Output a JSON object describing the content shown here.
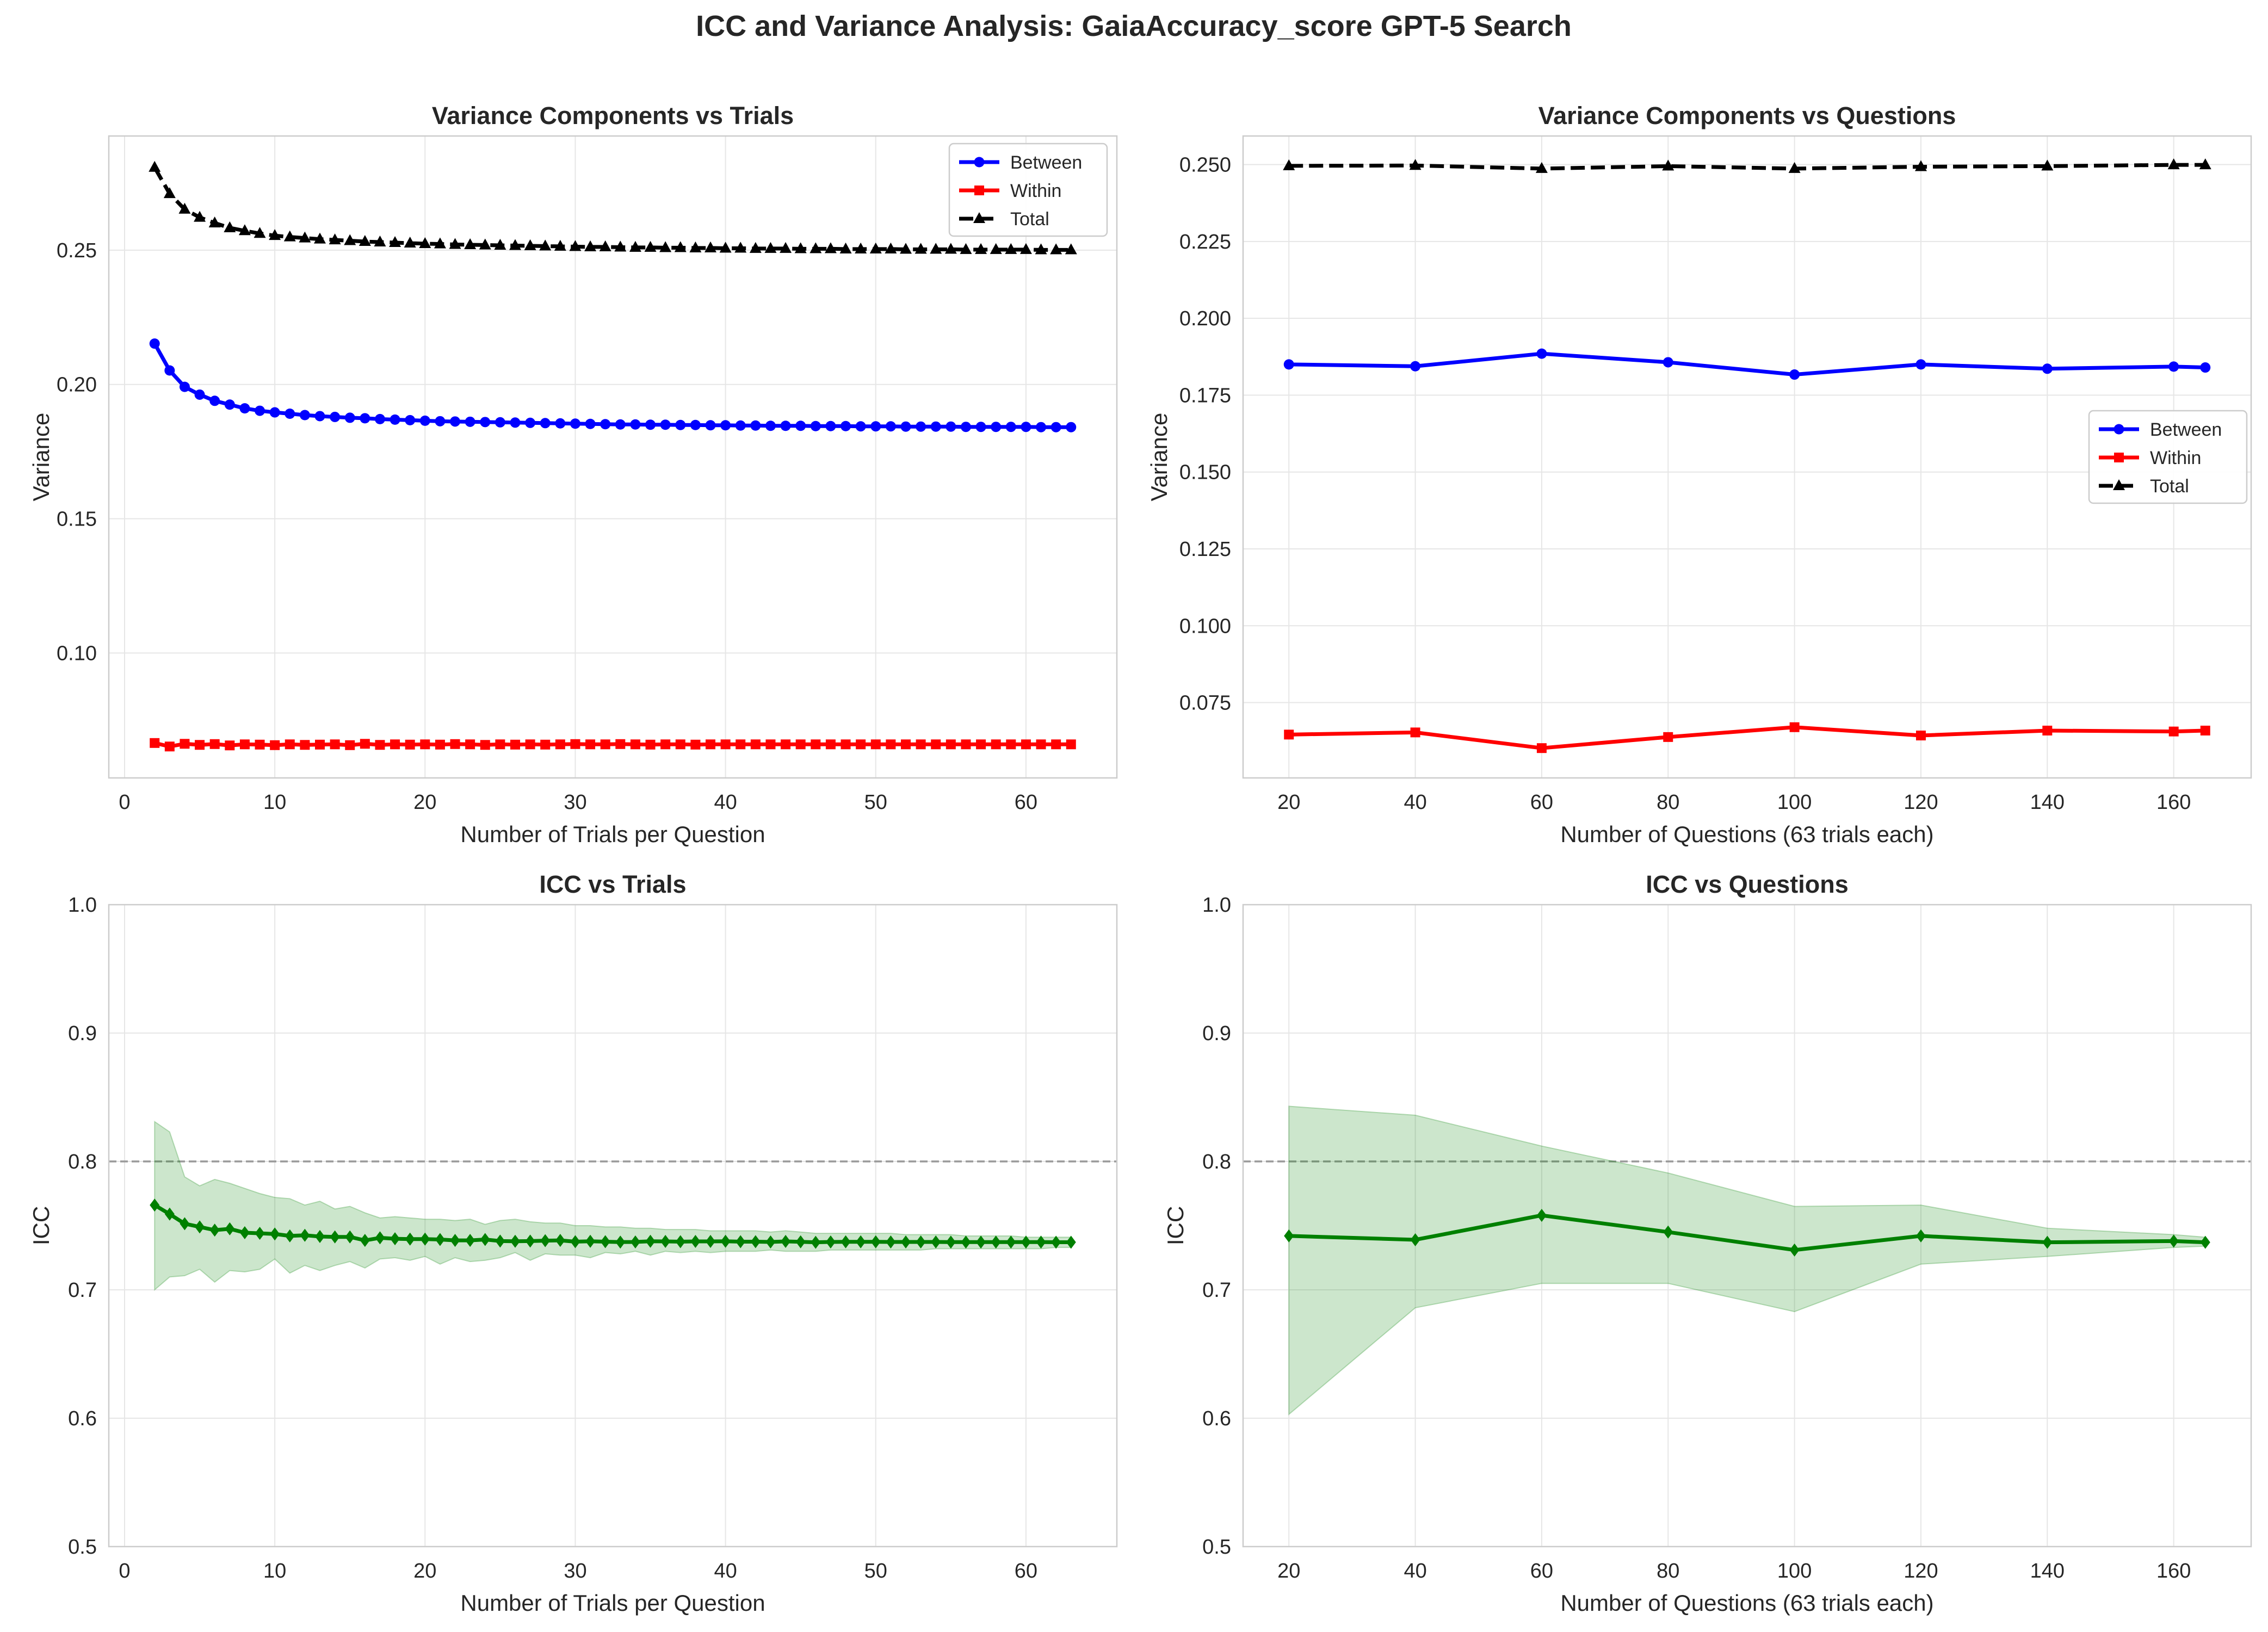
{
  "suptitle": "ICC and Variance Analysis: GaiaAccuracy_score GPT-5 Search",
  "colors": {
    "between": "#0000ff",
    "within": "#ff0000",
    "total": "#000000",
    "icc": "#008000",
    "ci_fill": "#008000",
    "reference_line": "#999999",
    "grid": "#e6e6e6",
    "spine": "#cccccc"
  },
  "chart_data": [
    {
      "id": "variance_vs_trials",
      "type": "line",
      "title": "Variance Components vs Trials",
      "xlabel": "Number of Trials per Question",
      "ylabel": "Variance",
      "xlim": [
        -1.05,
        66.05
      ],
      "ylim": [
        0.0535,
        0.2925
      ],
      "xticks": [
        0,
        10,
        20,
        30,
        40,
        50,
        60
      ],
      "yticks": [
        0.1,
        0.15,
        0.2,
        0.25
      ],
      "ytick_labels": [
        "0.10",
        "0.15",
        "0.20",
        "0.25"
      ],
      "legend": "top-right",
      "x": [
        2,
        3,
        4,
        5,
        6,
        7,
        8,
        9,
        10,
        11,
        12,
        13,
        14,
        15,
        16,
        17,
        18,
        19,
        20,
        21,
        22,
        23,
        24,
        25,
        26,
        27,
        28,
        29,
        30,
        31,
        32,
        33,
        34,
        35,
        36,
        37,
        38,
        39,
        40,
        41,
        42,
        43,
        44,
        45,
        46,
        47,
        48,
        49,
        50,
        51,
        52,
        53,
        54,
        55,
        56,
        57,
        58,
        59,
        60,
        61,
        62,
        63
      ],
      "series": [
        {
          "name": "Between",
          "key": "between",
          "marker": "circle",
          "dash": false,
          "values": [
            0.2152,
            0.2052,
            0.1991,
            0.1962,
            0.1939,
            0.1925,
            0.1911,
            0.1902,
            0.1896,
            0.1891,
            0.1886,
            0.1882,
            0.1879,
            0.1876,
            0.1874,
            0.1871,
            0.1869,
            0.1867,
            0.1865,
            0.1863,
            0.1862,
            0.1861,
            0.186,
            0.1859,
            0.1858,
            0.1857,
            0.1856,
            0.1855,
            0.1854,
            0.1853,
            0.1852,
            0.1851,
            0.1851,
            0.185,
            0.185,
            0.1849,
            0.1849,
            0.1848,
            0.1848,
            0.1847,
            0.1847,
            0.1846,
            0.1846,
            0.1846,
            0.1845,
            0.1845,
            0.1845,
            0.1844,
            0.1844,
            0.1844,
            0.1843,
            0.1843,
            0.1843,
            0.1843,
            0.1842,
            0.1842,
            0.1842,
            0.1842,
            0.1842,
            0.1841,
            0.1841,
            0.1841
          ]
        },
        {
          "name": "Within",
          "key": "within",
          "marker": "square",
          "dash": false,
          "values": [
            0.0665,
            0.0652,
            0.0662,
            0.0658,
            0.0661,
            0.0656,
            0.066,
            0.0659,
            0.0657,
            0.066,
            0.0658,
            0.0659,
            0.066,
            0.0657,
            0.0662,
            0.0658,
            0.066,
            0.0659,
            0.066,
            0.0659,
            0.0661,
            0.066,
            0.0658,
            0.066,
            0.0659,
            0.066,
            0.0659,
            0.066,
            0.0661,
            0.066,
            0.066,
            0.0661,
            0.066,
            0.0659,
            0.066,
            0.066,
            0.0659,
            0.066,
            0.066,
            0.066,
            0.066,
            0.066,
            0.066,
            0.066,
            0.066,
            0.066,
            0.066,
            0.066,
            0.066,
            0.066,
            0.066,
            0.066,
            0.066,
            0.066,
            0.066,
            0.066,
            0.066,
            0.066,
            0.066,
            0.066,
            0.066,
            0.066
          ]
        },
        {
          "name": "Total",
          "key": "total",
          "marker": "triangle",
          "dash": true,
          "values": [
            0.2808,
            0.271,
            0.2652,
            0.2622,
            0.2601,
            0.2583,
            0.2572,
            0.2562,
            0.2554,
            0.2549,
            0.2545,
            0.2541,
            0.2538,
            0.2535,
            0.2532,
            0.253,
            0.2528,
            0.2526,
            0.2524,
            0.2523,
            0.2521,
            0.252,
            0.2519,
            0.2518,
            0.2517,
            0.2516,
            0.2515,
            0.2514,
            0.2513,
            0.2512,
            0.2512,
            0.2511,
            0.251,
            0.251,
            0.2509,
            0.2509,
            0.2508,
            0.2508,
            0.2507,
            0.2507,
            0.2506,
            0.2506,
            0.2506,
            0.2505,
            0.2505,
            0.2505,
            0.2504,
            0.2504,
            0.2504,
            0.2504,
            0.2503,
            0.2503,
            0.2503,
            0.2503,
            0.2502,
            0.2502,
            0.2502,
            0.2502,
            0.2502,
            0.2501,
            0.2501,
            0.2501
          ]
        }
      ]
    },
    {
      "id": "variance_vs_questions",
      "type": "line",
      "title": "Variance Components vs Questions",
      "xlabel": "Number of Questions (63 trials each)",
      "ylabel": "Variance",
      "xlim": [
        12.75,
        172.25
      ],
      "ylim": [
        0.0505,
        0.2593
      ],
      "xticks": [
        20,
        40,
        60,
        80,
        100,
        120,
        140,
        160
      ],
      "yticks": [
        0.075,
        0.1,
        0.125,
        0.15,
        0.175,
        0.2,
        0.225,
        0.25
      ],
      "ytick_labels": [
        "0.075",
        "0.100",
        "0.125",
        "0.150",
        "0.175",
        "0.200",
        "0.225",
        "0.250"
      ],
      "legend": "center-right",
      "x": [
        20,
        40,
        60,
        80,
        100,
        120,
        140,
        160,
        165
      ],
      "series": [
        {
          "name": "Between",
          "key": "between",
          "marker": "circle",
          "dash": false,
          "values": [
            0.185,
            0.1844,
            0.1885,
            0.1857,
            0.1817,
            0.185,
            0.1836,
            0.1843,
            0.184
          ]
        },
        {
          "name": "Within",
          "key": "within",
          "marker": "square",
          "dash": false,
          "values": [
            0.0646,
            0.0653,
            0.0602,
            0.0638,
            0.067,
            0.0643,
            0.0659,
            0.0656,
            0.0659
          ]
        },
        {
          "name": "Total",
          "key": "total",
          "marker": "triangle",
          "dash": true,
          "values": [
            0.2496,
            0.2497,
            0.2487,
            0.2495,
            0.2487,
            0.2493,
            0.2495,
            0.2499,
            0.2499
          ]
        }
      ]
    },
    {
      "id": "icc_vs_trials",
      "type": "line",
      "title": "ICC vs Trials",
      "xlabel": "Number of Trials per Question",
      "ylabel": "ICC",
      "xlim": [
        -1.05,
        66.05
      ],
      "ylim": [
        0.5,
        1.0
      ],
      "xticks": [
        0,
        10,
        20,
        30,
        40,
        50,
        60
      ],
      "yticks": [
        0.5,
        0.6,
        0.7,
        0.8,
        0.9,
        1.0
      ],
      "ytick_labels": [
        "0.5",
        "0.6",
        "0.7",
        "0.8",
        "0.9",
        "1.0"
      ],
      "reference_line": 0.8,
      "x": [
        2,
        3,
        4,
        5,
        6,
        7,
        8,
        9,
        10,
        11,
        12,
        13,
        14,
        15,
        16,
        17,
        18,
        19,
        20,
        21,
        22,
        23,
        24,
        25,
        26,
        27,
        28,
        29,
        30,
        31,
        32,
        33,
        34,
        35,
        36,
        37,
        38,
        39,
        40,
        41,
        42,
        43,
        44,
        45,
        46,
        47,
        48,
        49,
        50,
        51,
        52,
        53,
        54,
        55,
        56,
        57,
        58,
        59,
        60,
        61,
        62,
        63
      ],
      "series": [
        {
          "name": "ICC",
          "key": "icc",
          "marker": "diamond",
          "dash": false,
          "values": [
            0.766,
            0.759,
            0.7515,
            0.749,
            0.7465,
            0.7475,
            0.7445,
            0.744,
            0.7435,
            0.742,
            0.7425,
            0.7415,
            0.7412,
            0.7412,
            0.7385,
            0.7405,
            0.7398,
            0.7395,
            0.7395,
            0.7392,
            0.7385,
            0.7385,
            0.7392,
            0.738,
            0.7378,
            0.738,
            0.7383,
            0.7385,
            0.7375,
            0.7378,
            0.7375,
            0.7372,
            0.7373,
            0.7378,
            0.7377,
            0.7375,
            0.7377,
            0.7377,
            0.7378,
            0.7375,
            0.7375,
            0.7373,
            0.7377,
            0.7374,
            0.737,
            0.7373,
            0.7374,
            0.7374,
            0.7374,
            0.7373,
            0.7373,
            0.7373,
            0.7373,
            0.7372,
            0.7372,
            0.7372,
            0.7372,
            0.7372,
            0.7372,
            0.7372,
            0.7371,
            0.7371
          ],
          "ci_lower": [
            0.7,
            0.71,
            0.711,
            0.716,
            0.706,
            0.715,
            0.714,
            0.716,
            0.724,
            0.713,
            0.719,
            0.715,
            0.719,
            0.722,
            0.717,
            0.724,
            0.725,
            0.723,
            0.726,
            0.72,
            0.725,
            0.722,
            0.723,
            0.725,
            0.729,
            0.723,
            0.728,
            0.727,
            0.727,
            0.725,
            0.729,
            0.728,
            0.73,
            0.727,
            0.73,
            0.729,
            0.73,
            0.729,
            0.73,
            0.73,
            0.73,
            0.731,
            0.73,
            0.73,
            0.73,
            0.731,
            0.731,
            0.731,
            0.731,
            0.731,
            0.731,
            0.731,
            0.732,
            0.732,
            0.732,
            0.732,
            0.732,
            0.732,
            0.732,
            0.732,
            0.733,
            0.733
          ],
          "ci_upper": [
            0.831,
            0.823,
            0.788,
            0.781,
            0.786,
            0.783,
            0.779,
            0.775,
            0.772,
            0.771,
            0.766,
            0.769,
            0.763,
            0.765,
            0.76,
            0.756,
            0.757,
            0.756,
            0.755,
            0.755,
            0.754,
            0.755,
            0.751,
            0.754,
            0.755,
            0.753,
            0.752,
            0.752,
            0.75,
            0.75,
            0.749,
            0.749,
            0.748,
            0.748,
            0.747,
            0.747,
            0.747,
            0.746,
            0.746,
            0.746,
            0.746,
            0.745,
            0.746,
            0.745,
            0.744,
            0.744,
            0.744,
            0.744,
            0.744,
            0.744,
            0.743,
            0.743,
            0.743,
            0.743,
            0.742,
            0.742,
            0.742,
            0.742,
            0.741,
            0.741,
            0.741,
            0.741
          ]
        }
      ]
    },
    {
      "id": "icc_vs_questions",
      "type": "line",
      "title": "ICC vs Questions",
      "xlabel": "Number of Questions (63 trials each)",
      "ylabel": "ICC",
      "xlim": [
        12.75,
        172.25
      ],
      "ylim": [
        0.5,
        1.0
      ],
      "xticks": [
        20,
        40,
        60,
        80,
        100,
        120,
        140,
        160
      ],
      "yticks": [
        0.5,
        0.6,
        0.7,
        0.8,
        0.9,
        1.0
      ],
      "ytick_labels": [
        "0.5",
        "0.6",
        "0.7",
        "0.8",
        "0.9",
        "1.0"
      ],
      "reference_line": 0.8,
      "x": [
        20,
        40,
        60,
        80,
        100,
        120,
        140,
        160,
        165
      ],
      "series": [
        {
          "name": "ICC",
          "key": "icc",
          "marker": "diamond",
          "dash": false,
          "values": [
            0.742,
            0.739,
            0.758,
            0.745,
            0.731,
            0.742,
            0.737,
            0.738,
            0.737
          ],
          "ci_lower": [
            0.603,
            0.686,
            0.705,
            0.705,
            0.683,
            0.72,
            0.726,
            0.733,
            0.734
          ],
          "ci_upper": [
            0.843,
            0.836,
            0.812,
            0.791,
            0.765,
            0.766,
            0.748,
            0.743,
            0.741
          ]
        }
      ]
    }
  ]
}
